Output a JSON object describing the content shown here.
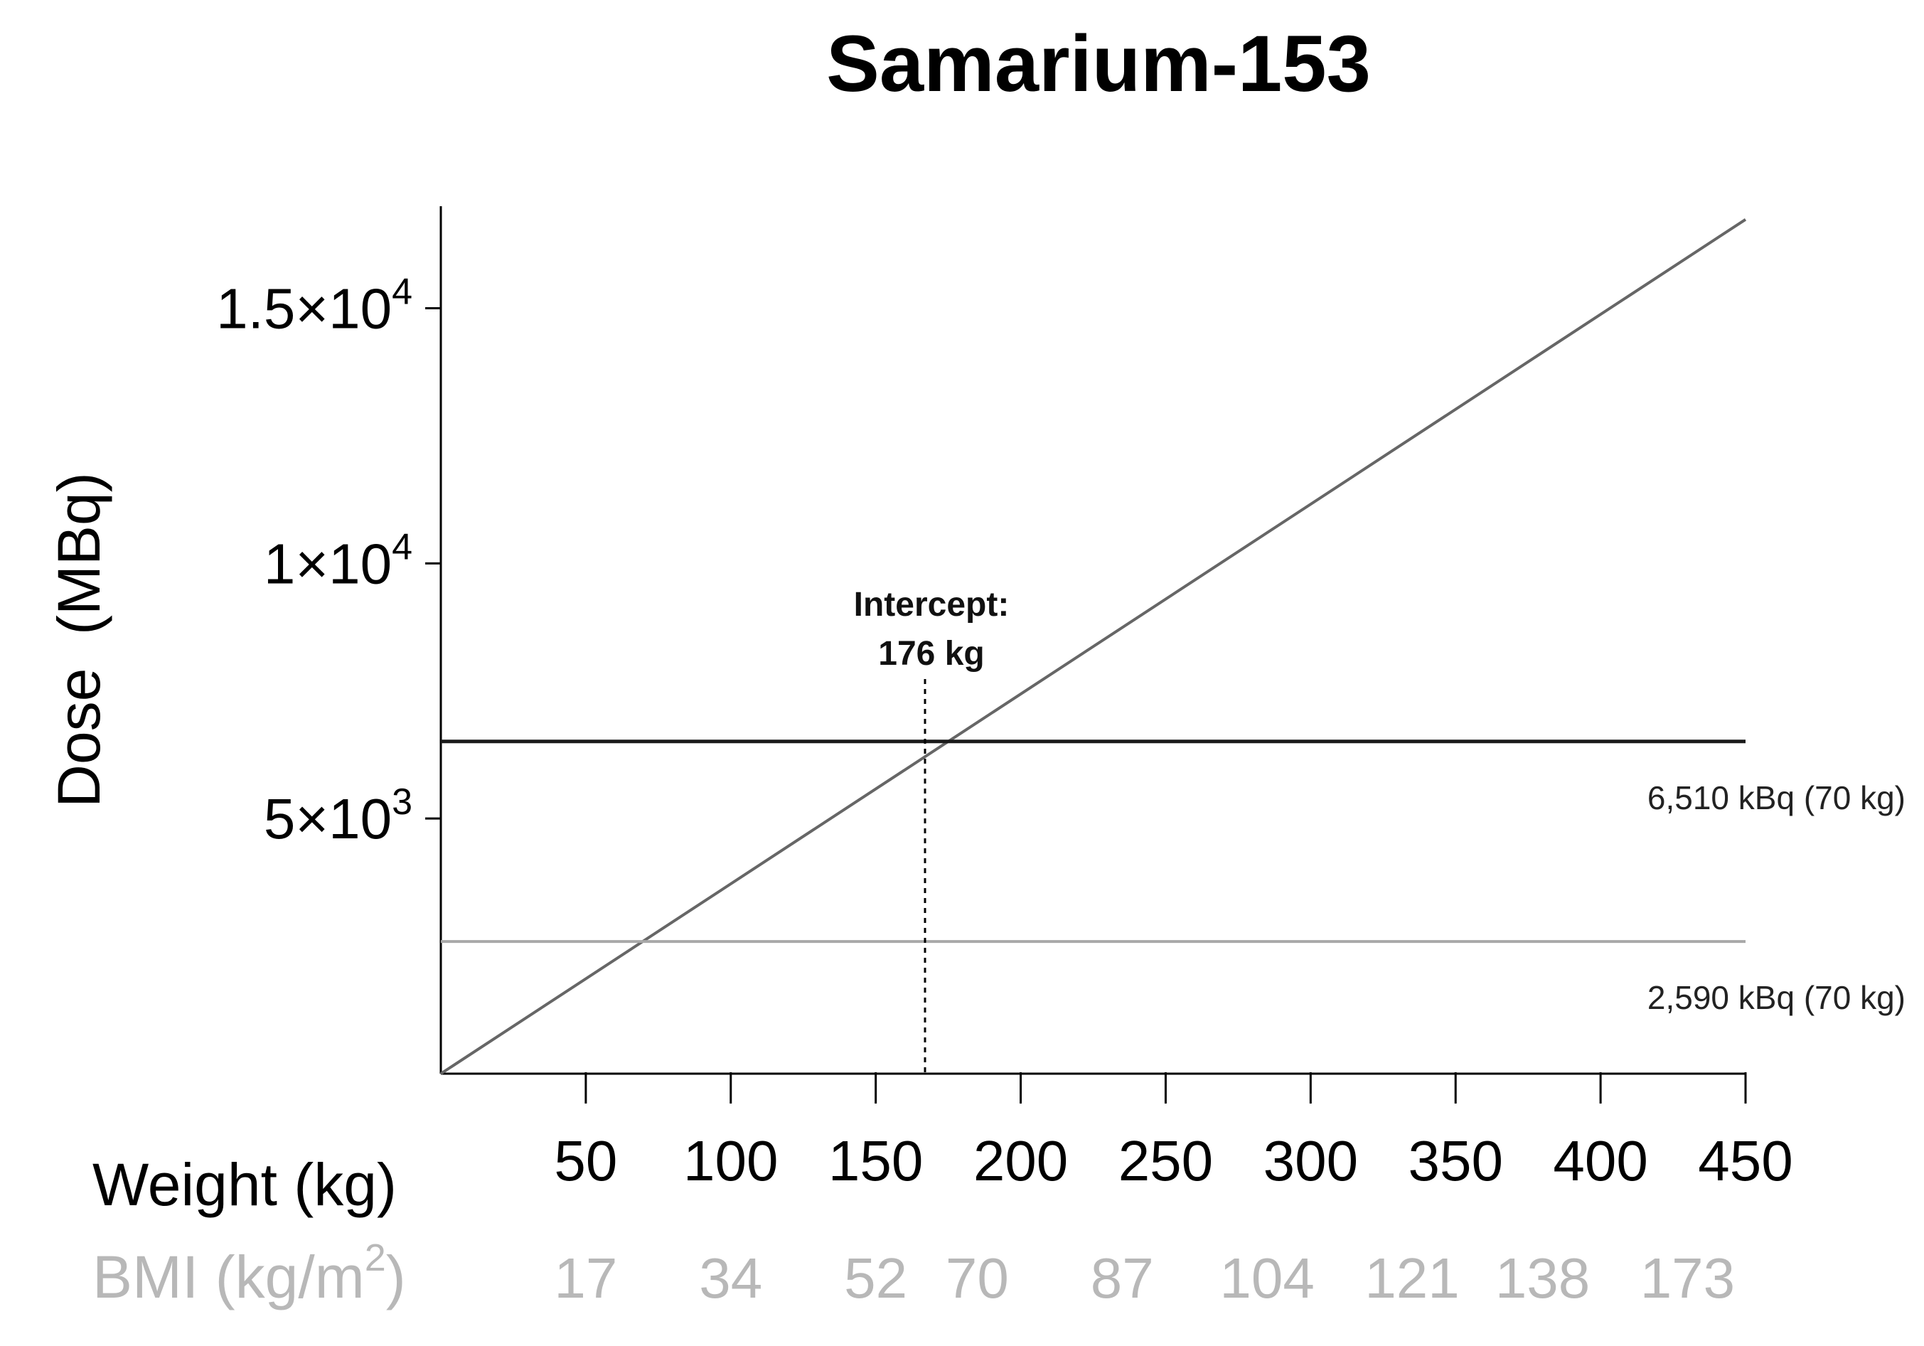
{
  "chart_data": {
    "type": "line",
    "title": "Samarium-153",
    "xlabel": "Weight (kg)",
    "ylabel": "Dose  (MBq)",
    "secondary_xlabel": {
      "base": "BMI (kg/m",
      "sup": "2",
      "tail": ")"
    },
    "x_ticks": [
      "50",
      "100",
      "150",
      "200",
      "250",
      "300",
      "350",
      "400",
      "450"
    ],
    "bmi_ticks": [
      {
        "weight": 50,
        "label": "17"
      },
      {
        "weight": 100,
        "label": "34"
      },
      {
        "weight": 150,
        "label": "52"
      },
      {
        "weight": 185,
        "label": "70"
      },
      {
        "weight": 235,
        "label": "87"
      },
      {
        "weight": 285,
        "label": "104"
      },
      {
        "weight": 335,
        "label": "121"
      },
      {
        "weight": 380,
        "label": "138"
      },
      {
        "weight": 430,
        "label": "173"
      }
    ],
    "y_ticks": [
      {
        "value": 5000,
        "base": "5×10",
        "exp": "3"
      },
      {
        "value": 10000,
        "base": "1×10",
        "exp": "4"
      },
      {
        "value": 15000,
        "base": "1.5×10",
        "exp": "4"
      }
    ],
    "xlim": [
      0,
      450
    ],
    "ylim": [
      0,
      17000
    ],
    "grid": false,
    "series": [
      {
        "values": [
          [
            0,
            0
          ],
          [
            450,
            16740
          ]
        ],
        "color": "#666666"
      },
      {
        "label": "6,510 kBq (70 kg)",
        "values": [
          [
            0,
            6510
          ],
          [
            450,
            6510
          ]
        ],
        "color": "#1a1a1a"
      },
      {
        "label": "2,590 kBq (70 kg)",
        "values": [
          [
            0,
            2590
          ],
          [
            450,
            2590
          ]
        ],
        "color": "#a8a8a8"
      }
    ],
    "annotation": {
      "x": 167,
      "line1": "Intercept:",
      "line2": "176 kg"
    }
  }
}
